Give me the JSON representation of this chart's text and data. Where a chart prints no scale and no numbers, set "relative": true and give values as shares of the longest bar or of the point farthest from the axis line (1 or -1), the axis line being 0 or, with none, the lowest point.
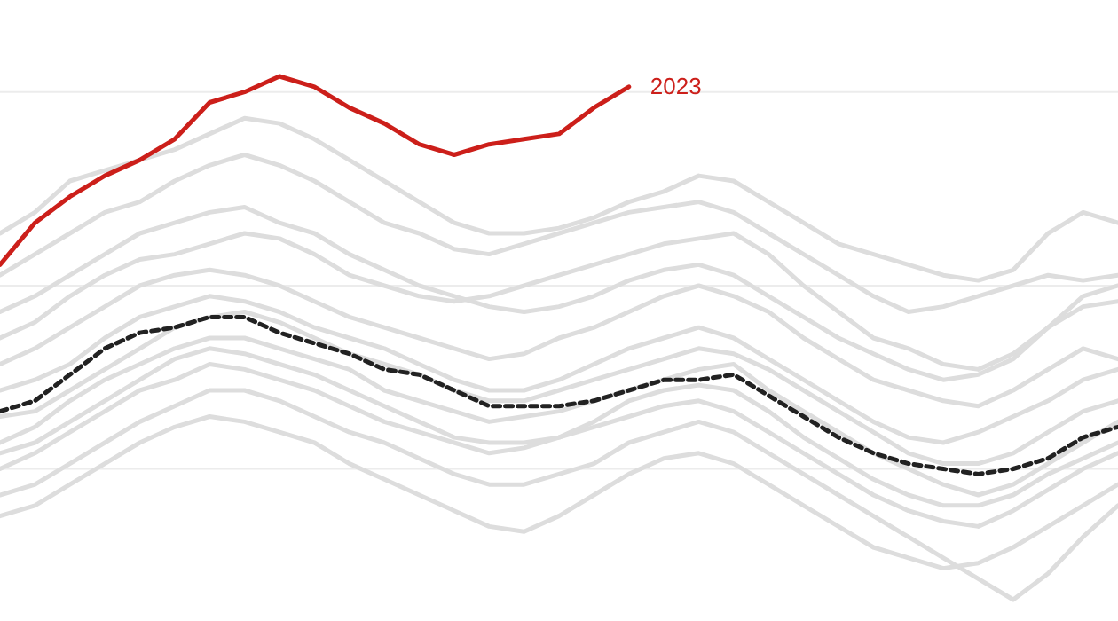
{
  "chart_data": {
    "type": "line",
    "relative": true,
    "ref_lines": [
      {
        "axis": "y",
        "value": 0.97,
        "color": "#ececec"
      },
      {
        "axis": "y",
        "value": 0.6,
        "color": "#ececec"
      },
      {
        "axis": "y",
        "value": 0.25,
        "color": "#ececec"
      }
    ],
    "categories": [
      null,
      null,
      null,
      null,
      null,
      null,
      null,
      null,
      null,
      null,
      null,
      null,
      null,
      null,
      null,
      null,
      null,
      null,
      null,
      null,
      null,
      null,
      null,
      null,
      null,
      null,
      null,
      null,
      null,
      null,
      null,
      null,
      null
    ],
    "series": [
      {
        "color": "#dddddd",
        "values": [
          0.7,
          0.74,
          0.8,
          0.82,
          0.84,
          0.86,
          0.89,
          0.92,
          0.91,
          0.88,
          0.84,
          0.8,
          0.76,
          0.72,
          0.7,
          0.7,
          0.71,
          0.73,
          0.76,
          0.78,
          0.81,
          0.8,
          0.76,
          0.72,
          0.68,
          0.66,
          0.64,
          0.62,
          0.61,
          0.63,
          0.7,
          0.74,
          0.72
        ]
      },
      {
        "color": "#dddddd",
        "values": [
          0.62,
          0.66,
          0.7,
          0.74,
          0.76,
          0.8,
          0.83,
          0.85,
          0.83,
          0.8,
          0.76,
          0.72,
          0.7,
          0.67,
          0.66,
          0.68,
          0.7,
          0.72,
          0.74,
          0.75,
          0.76,
          0.74,
          0.7,
          0.66,
          0.62,
          0.58,
          0.55,
          0.56,
          0.58,
          0.6,
          0.62,
          0.61,
          0.62
        ]
      },
      {
        "color": "#dddddd",
        "values": [
          0.5,
          0.53,
          0.58,
          0.62,
          0.65,
          0.66,
          0.68,
          0.7,
          0.69,
          0.66,
          0.62,
          0.6,
          0.58,
          0.57,
          0.58,
          0.6,
          0.62,
          0.64,
          0.66,
          0.68,
          0.69,
          0.7,
          0.66,
          0.6,
          0.55,
          0.5,
          0.48,
          0.45,
          0.44,
          0.47,
          0.52,
          0.58,
          0.6
        ]
      },
      {
        "color": "#dddddd",
        "values": [
          0.45,
          0.48,
          0.52,
          0.56,
          0.6,
          0.62,
          0.63,
          0.62,
          0.6,
          0.57,
          0.54,
          0.52,
          0.5,
          0.48,
          0.46,
          0.47,
          0.5,
          0.52,
          0.55,
          0.58,
          0.6,
          0.58,
          0.55,
          0.5,
          0.46,
          0.42,
          0.4,
          0.38,
          0.37,
          0.4,
          0.44,
          0.48,
          0.46
        ]
      },
      {
        "color": "#dddddd",
        "values": [
          0.4,
          0.42,
          0.45,
          0.5,
          0.54,
          0.56,
          0.58,
          0.57,
          0.55,
          0.52,
          0.5,
          0.48,
          0.45,
          0.42,
          0.4,
          0.4,
          0.42,
          0.45,
          0.48,
          0.5,
          0.52,
          0.5,
          0.46,
          0.42,
          0.38,
          0.34,
          0.31,
          0.3,
          0.32,
          0.35,
          0.38,
          0.42,
          0.44
        ]
      },
      {
        "color": "#dddddd",
        "values": [
          0.3,
          0.33,
          0.38,
          0.42,
          0.45,
          0.48,
          0.5,
          0.5,
          0.48,
          0.46,
          0.44,
          0.4,
          0.38,
          0.36,
          0.34,
          0.35,
          0.36,
          0.38,
          0.4,
          0.42,
          0.44,
          0.45,
          0.4,
          0.36,
          0.32,
          0.28,
          0.25,
          0.22,
          0.2,
          0.22,
          0.26,
          0.3,
          0.34
        ]
      },
      {
        "color": "#dddddd",
        "values": [
          0.25,
          0.28,
          0.32,
          0.36,
          0.4,
          0.42,
          0.45,
          0.44,
          0.42,
          0.4,
          0.37,
          0.34,
          0.32,
          0.3,
          0.28,
          0.29,
          0.31,
          0.33,
          0.35,
          0.37,
          0.38,
          0.36,
          0.32,
          0.28,
          0.24,
          0.2,
          0.17,
          0.15,
          0.14,
          0.17,
          0.21,
          0.25,
          0.28
        ]
      },
      {
        "color": "#dddddd",
        "values": [
          0.2,
          0.22,
          0.26,
          0.3,
          0.34,
          0.37,
          0.4,
          0.4,
          0.38,
          0.35,
          0.32,
          0.3,
          0.27,
          0.24,
          0.22,
          0.22,
          0.24,
          0.26,
          0.3,
          0.32,
          0.34,
          0.32,
          0.28,
          0.24,
          0.2,
          0.16,
          0.12,
          0.08,
          0.04,
          0.0,
          0.05,
          0.12,
          0.18
        ]
      },
      {
        "color": "#dddddd",
        "values": [
          0.16,
          0.18,
          0.22,
          0.26,
          0.3,
          0.33,
          0.35,
          0.34,
          0.32,
          0.3,
          0.26,
          0.23,
          0.2,
          0.17,
          0.14,
          0.13,
          0.16,
          0.2,
          0.24,
          0.27,
          0.28,
          0.26,
          0.22,
          0.18,
          0.14,
          0.1,
          0.08,
          0.06,
          0.07,
          0.1,
          0.14,
          0.18,
          0.22
        ]
      },
      {
        "color": "#dddddd",
        "values": [
          0.55,
          0.58,
          0.62,
          0.66,
          0.7,
          0.72,
          0.74,
          0.75,
          0.72,
          0.7,
          0.66,
          0.63,
          0.6,
          0.58,
          0.56,
          0.55,
          0.56,
          0.58,
          0.61,
          0.63,
          0.64,
          0.62,
          0.58,
          0.54,
          0.5,
          0.47,
          0.44,
          0.42,
          0.43,
          0.46,
          0.52,
          0.56,
          0.57
        ]
      },
      {
        "color": "#dddddd",
        "values": [
          0.35,
          0.36,
          0.4,
          0.44,
          0.48,
          0.52,
          0.54,
          0.55,
          0.53,
          0.5,
          0.47,
          0.45,
          0.43,
          0.4,
          0.38,
          0.38,
          0.4,
          0.42,
          0.44,
          0.46,
          0.48,
          0.47,
          0.44,
          0.4,
          0.36,
          0.32,
          0.28,
          0.26,
          0.26,
          0.28,
          0.32,
          0.36,
          0.38
        ]
      },
      {
        "color": "#dddddd",
        "values": [
          0.28,
          0.3,
          0.34,
          0.38,
          0.42,
          0.46,
          0.48,
          0.47,
          0.45,
          0.43,
          0.4,
          0.37,
          0.34,
          0.31,
          0.3,
          0.3,
          0.31,
          0.34,
          0.38,
          0.4,
          0.41,
          0.4,
          0.36,
          0.31,
          0.27,
          0.23,
          0.2,
          0.18,
          0.18,
          0.2,
          0.24,
          0.27,
          0.3
        ]
      },
      {
        "color": "#222222",
        "line_style": "dashed",
        "values": [
          0.36,
          0.38,
          0.43,
          0.48,
          0.51,
          0.52,
          0.54,
          0.54,
          0.51,
          0.49,
          0.47,
          0.44,
          0.43,
          0.4,
          0.37,
          0.37,
          0.37,
          0.38,
          0.4,
          0.42,
          0.42,
          0.43,
          0.39,
          0.35,
          0.31,
          0.28,
          0.26,
          0.25,
          0.24,
          0.25,
          0.27,
          0.31,
          0.33
        ]
      },
      {
        "name": "2023",
        "color": "#cc1f1a",
        "values": [
          0.64,
          0.72,
          0.77,
          0.81,
          0.84,
          0.88,
          0.95,
          0.97,
          1.0,
          0.98,
          0.94,
          0.91,
          0.87,
          0.85,
          0.87,
          0.88,
          0.89,
          0.94,
          0.98,
          null,
          null,
          null,
          null,
          null,
          null,
          null,
          null,
          null,
          null,
          null,
          null,
          null,
          null
        ]
      }
    ]
  }
}
